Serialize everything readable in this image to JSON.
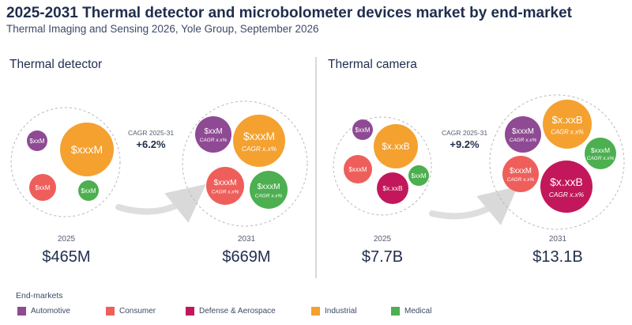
{
  "header": {
    "title": "2025-2031 Thermal detector and microbolometer devices market by end-market",
    "subtitle": "Thermal Imaging and Sensing 2026, Yole Group, September 2026"
  },
  "legend": {
    "title": "End-markets",
    "items": [
      {
        "label": "Automotive",
        "color": "#8e4a93"
      },
      {
        "label": "Consumer",
        "color": "#ee5f5b"
      },
      {
        "label": "Defense & Aerospace",
        "color": "#c2185b"
      },
      {
        "label": "Industrial",
        "color": "#f4a130"
      },
      {
        "label": "Medical",
        "color": "#4caf50"
      }
    ]
  },
  "chart_data": [
    {
      "type": "bubble",
      "title": "Thermal detector",
      "cagr_label": "CAGR 2025-31",
      "cagr_value": "+6.2%",
      "periods": [
        {
          "year": "2025",
          "total": "$465M",
          "bubbles": [
            {
              "segment": "Automotive",
              "label": "$xxM"
            },
            {
              "segment": "Industrial",
              "label": "$xxxM"
            },
            {
              "segment": "Consumer",
              "label": "$xxM"
            },
            {
              "segment": "Medical",
              "label": "$xxM"
            }
          ]
        },
        {
          "year": "2031",
          "total": "$669M",
          "bubbles": [
            {
              "segment": "Automotive",
              "label": "$xxM",
              "cagr": "CAGR x.x%"
            },
            {
              "segment": "Industrial",
              "label": "$xxxM",
              "cagr": "CAGR x.x%"
            },
            {
              "segment": "Consumer",
              "label": "$xxxM",
              "cagr": "CAGR x.x%"
            },
            {
              "segment": "Medical",
              "label": "$xxxM",
              "cagr": "CAGR x.x%"
            }
          ]
        }
      ]
    },
    {
      "type": "bubble",
      "title": "Thermal camera",
      "cagr_label": "CAGR 2025-31",
      "cagr_value": "+9.2%",
      "periods": [
        {
          "year": "2025",
          "total": "$7.7B",
          "bubbles": [
            {
              "segment": "Automotive",
              "label": "$xxM"
            },
            {
              "segment": "Industrial",
              "label": "$x.xxB"
            },
            {
              "segment": "Consumer",
              "label": "$xxxM"
            },
            {
              "segment": "Medical",
              "label": "$xxM"
            },
            {
              "segment": "Defense & Aerospace",
              "label": "$x.xxB"
            }
          ]
        },
        {
          "year": "2031",
          "total": "$13.1B",
          "bubbles": [
            {
              "segment": "Automotive",
              "label": "$xxxM",
              "cagr": "CAGR x.x%"
            },
            {
              "segment": "Industrial",
              "label": "$x.xxB",
              "cagr": "CAGR x.x%"
            },
            {
              "segment": "Medical",
              "label": "$xxxM",
              "cagr": "CAGR x.x%"
            },
            {
              "segment": "Consumer",
              "label": "$xxxM",
              "cagr": "CAGR x.x%"
            },
            {
              "segment": "Defense & Aerospace",
              "label": "$x.xxB",
              "cagr": "CAGR x.x%"
            }
          ]
        }
      ]
    }
  ]
}
